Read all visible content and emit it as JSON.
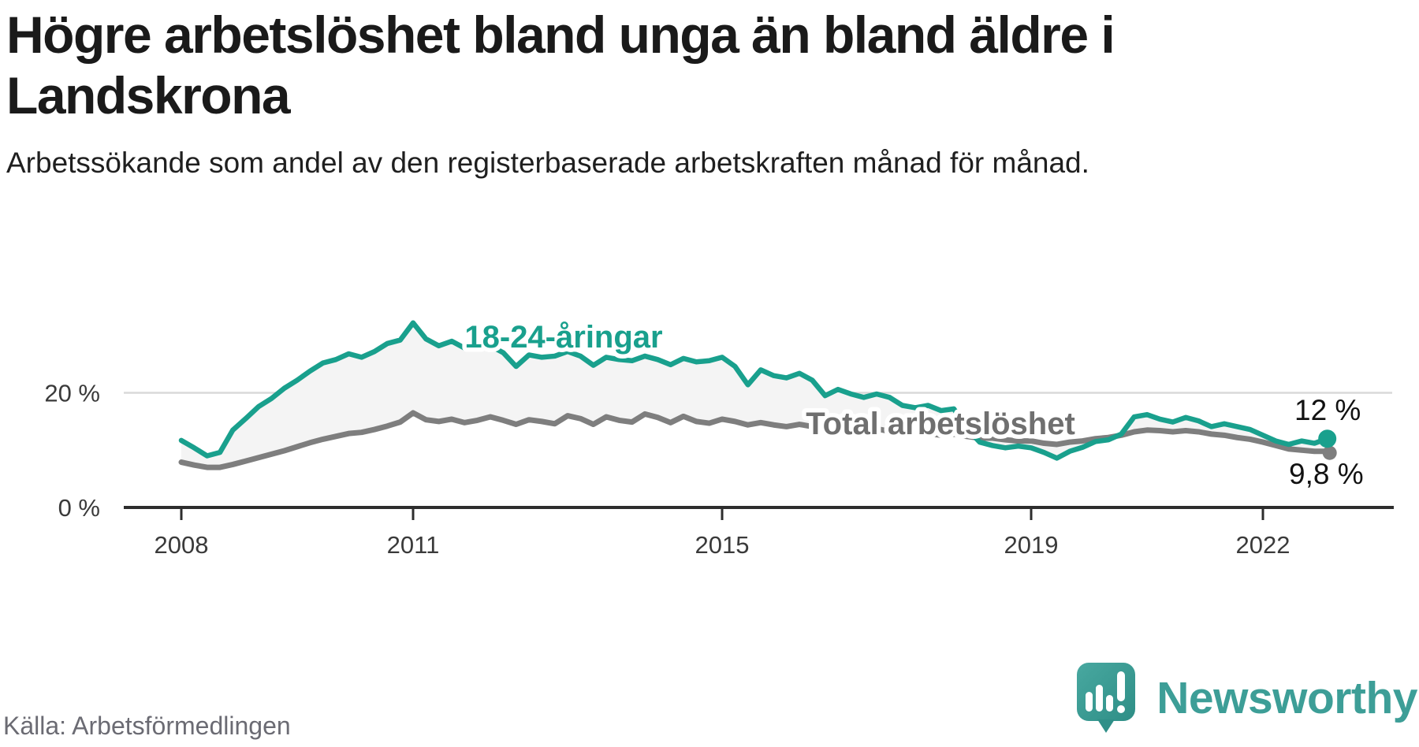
{
  "title": "Högre arbetslöshet bland unga än bland äldre i Landskrona",
  "subtitle": "Arbetssökande som andel av den registerbaserade arbetskraften månad för månad.",
  "source": "Källa: Arbetsförmedlingen",
  "logo": {
    "name": "Newsworthy",
    "text_color": "#3d9e97",
    "bubble_color": "#3ea09a",
    "bubble_color_dark": "#2e8e86"
  },
  "chart_data": {
    "type": "line",
    "title": "Högre arbetslöshet bland unga än bland äldre i Landskrona",
    "subtitle": "Arbetssökande som andel av den registerbaserade arbetskraften månad för månad.",
    "x_start": 2008,
    "x_step_years": 0.16667,
    "x_ticks": [
      2008,
      2011,
      2015,
      2019,
      2022
    ],
    "y_ticks": [
      {
        "value": 0,
        "label": "0 %"
      },
      {
        "value": 20,
        "label": "20 %"
      }
    ],
    "ylim": [
      0,
      34
    ],
    "grid": "y-only",
    "fill_between_color": "#f4f4f4",
    "axis_color": "#2d2d2d",
    "grid_color": "#d9d9d9",
    "tick_label_color": "#3a3a3a",
    "annotation_color": "#111111",
    "series": [
      {
        "name": "18-24-åringar",
        "color": "#19a08d",
        "end_label": "12 %",
        "values": [
          11.7,
          10.4,
          9.0,
          9.6,
          13.5,
          15.5,
          17.6,
          19.0,
          20.8,
          22.2,
          23.8,
          25.2,
          25.8,
          26.8,
          26.2,
          27.2,
          28.6,
          29.2,
          32.2,
          29.4,
          28.2,
          29.0,
          27.8,
          27.6,
          28.2,
          27.0,
          24.6,
          26.6,
          26.2,
          26.4,
          27.2,
          26.4,
          24.8,
          26.2,
          25.8,
          25.6,
          26.4,
          25.8,
          24.9,
          26.0,
          25.4,
          25.6,
          26.2,
          24.6,
          21.4,
          24.0,
          23.0,
          22.6,
          23.4,
          22.2,
          19.5,
          20.6,
          19.8,
          19.2,
          19.8,
          19.2,
          17.8,
          17.4,
          17.8,
          16.9,
          17.2,
          13.8,
          11.4,
          10.8,
          10.4,
          10.7,
          10.4,
          9.6,
          8.6,
          9.8,
          10.5,
          11.5,
          11.8,
          12.8,
          15.8,
          16.2,
          15.4,
          14.9,
          15.7,
          15.1,
          14.1,
          14.6,
          14.1,
          13.6,
          12.6,
          11.6,
          11.0,
          11.6,
          11.2,
          12.0
        ]
      },
      {
        "name": "Total arbetslöshet",
        "color": "#7e7e7e",
        "label_color": "#6f6f6f",
        "end_label": "9,8 %",
        "values": [
          7.9,
          7.4,
          7.0,
          7.0,
          7.5,
          8.1,
          8.7,
          9.3,
          9.9,
          10.6,
          11.3,
          11.9,
          12.4,
          12.9,
          13.1,
          13.6,
          14.2,
          14.9,
          16.5,
          15.3,
          15.0,
          15.4,
          14.8,
          15.2,
          15.8,
          15.2,
          14.5,
          15.3,
          15.0,
          14.6,
          16.0,
          15.5,
          14.5,
          15.8,
          15.2,
          14.9,
          16.3,
          15.7,
          14.8,
          15.9,
          15.0,
          14.7,
          15.4,
          15.0,
          14.4,
          14.8,
          14.4,
          14.1,
          14.5,
          14.1,
          13.6,
          14.0,
          13.7,
          13.4,
          13.7,
          13.3,
          12.9,
          13.2,
          12.9,
          12.6,
          12.8,
          12.4,
          12.1,
          12.1,
          11.8,
          11.6,
          11.6,
          11.2,
          11.0,
          11.4,
          11.6,
          12.0,
          12.2,
          12.6,
          13.2,
          13.5,
          13.4,
          13.2,
          13.4,
          13.2,
          12.8,
          12.6,
          12.2,
          11.9,
          11.4,
          10.8,
          10.2,
          10.0,
          9.8,
          9.8
        ]
      }
    ]
  }
}
